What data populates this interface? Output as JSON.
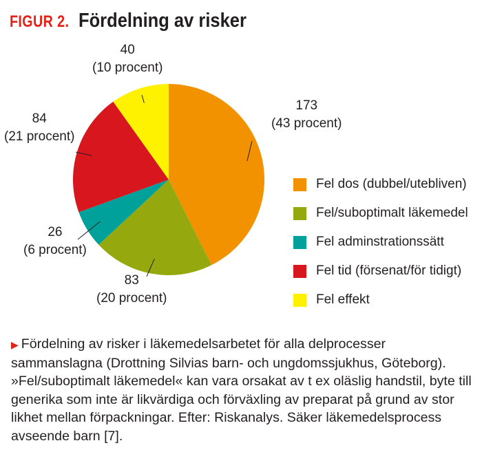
{
  "title": {
    "prefix": "FIGUR 2.",
    "text": "Fördelning av risker"
  },
  "colors": {
    "accent": "#e2231a"
  },
  "chart_data": {
    "type": "pie",
    "start_angle_deg": 0,
    "direction": "clockwise",
    "slices": [
      {
        "name": "Fel dos (dubbel/utebliven)",
        "value": 173,
        "count": "173",
        "percent": "(43 procent)",
        "color": "#f39200"
      },
      {
        "name": "Fel/suboptimalt läkemedel",
        "value": 83,
        "count": "83",
        "percent": "(20 procent)",
        "color": "#95a90e"
      },
      {
        "name": "Fel adminstrationssätt",
        "value": 26,
        "count": "26",
        "percent": "(6 procent)",
        "color": "#00a19a"
      },
      {
        "name": "Fel tid (försenat/för tidigt)",
        "value": 84,
        "count": "84",
        "percent": "(21 procent)",
        "color": "#d7161e"
      },
      {
        "name": "Fel effekt",
        "value": 40,
        "count": "40",
        "percent": "(10 procent)",
        "color": "#fff200"
      }
    ],
    "legend": "right"
  },
  "caption": "Fördelning av risker i läkemedelsarbetet för alla delprocesser sammanslagna (Drottning Silvias barn- och ungdomssjukhus, Göteborg). »Fel/suboptimalt läkemedel« kan vara orsakat av t ex oläslig handstil, byte till generika som inte är likvärdiga och förväxling av preparat på grund av stor likhet mellan förpackningar. Efter: Riskanalys. Säker läkemedelsprocess avseende barn [7]."
}
